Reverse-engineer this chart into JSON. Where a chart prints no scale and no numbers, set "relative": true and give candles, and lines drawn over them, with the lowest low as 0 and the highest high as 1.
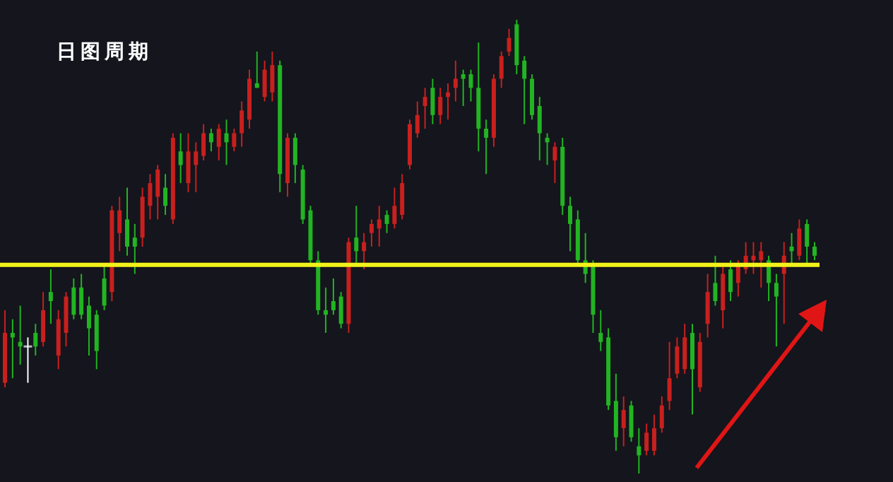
{
  "chart_data": {
    "type": "candlestick",
    "title": "日图周期",
    "relative": true,
    "categories": [
      null,
      null,
      null,
      null,
      null,
      null,
      null,
      null,
      null,
      null,
      null,
      null,
      null,
      null,
      null,
      null,
      null,
      null,
      null,
      null,
      null,
      null,
      null,
      null,
      null,
      null,
      null,
      null,
      null,
      null,
      null,
      null,
      null,
      null,
      null,
      null,
      null,
      null,
      null,
      null,
      null,
      null,
      null,
      null,
      null,
      null,
      null,
      null,
      null,
      null,
      null,
      null,
      null,
      null,
      null,
      null,
      null,
      null,
      null,
      null,
      null,
      null,
      null,
      null,
      null,
      null,
      null,
      null,
      null,
      null,
      null,
      null,
      null,
      null,
      null,
      null,
      null,
      null,
      null,
      null,
      null,
      null,
      null,
      null,
      null,
      null,
      null,
      null,
      null,
      null,
      null,
      null,
      null,
      null,
      null,
      null,
      null,
      null,
      null,
      null,
      null,
      null,
      null,
      null,
      null,
      null,
      null
    ],
    "ohlc": [
      [
        0.2,
        0.36,
        0.19,
        0.31
      ],
      [
        0.31,
        0.34,
        0.21,
        0.3
      ],
      [
        0.29,
        0.37,
        0.24,
        0.28
      ],
      [
        0.28,
        0.3,
        0.2,
        0.28
      ],
      [
        0.31,
        0.33,
        0.26,
        0.28
      ],
      [
        0.29,
        0.4,
        0.28,
        0.36
      ],
      [
        0.4,
        0.45,
        0.33,
        0.38
      ],
      [
        0.26,
        0.36,
        0.23,
        0.34
      ],
      [
        0.31,
        0.4,
        0.28,
        0.39
      ],
      [
        0.41,
        0.43,
        0.34,
        0.35
      ],
      [
        0.41,
        0.44,
        0.34,
        0.35
      ],
      [
        0.37,
        0.39,
        0.26,
        0.32
      ],
      [
        0.35,
        0.36,
        0.23,
        0.27
      ],
      [
        0.43,
        0.46,
        0.36,
        0.37
      ],
      [
        0.4,
        0.59,
        0.38,
        0.58
      ],
      [
        0.53,
        0.61,
        0.49,
        0.58
      ],
      [
        0.56,
        0.63,
        0.48,
        0.5
      ],
      [
        0.52,
        0.55,
        0.44,
        0.5
      ],
      [
        0.52,
        0.63,
        0.5,
        0.61
      ],
      [
        0.59,
        0.66,
        0.56,
        0.64
      ],
      [
        0.61,
        0.68,
        0.56,
        0.67
      ],
      [
        0.63,
        0.66,
        0.57,
        0.59
      ],
      [
        0.56,
        0.75,
        0.55,
        0.74
      ],
      [
        0.71,
        0.75,
        0.64,
        0.68
      ],
      [
        0.64,
        0.75,
        0.62,
        0.71
      ],
      [
        0.68,
        0.73,
        0.62,
        0.71
      ],
      [
        0.7,
        0.77,
        0.69,
        0.75
      ],
      [
        0.75,
        0.76,
        0.71,
        0.73
      ],
      [
        0.72,
        0.77,
        0.69,
        0.76
      ],
      [
        0.75,
        0.78,
        0.68,
        0.73
      ],
      [
        0.72,
        0.76,
        0.71,
        0.75
      ],
      [
        0.75,
        0.82,
        0.72,
        0.8
      ],
      [
        0.78,
        0.89,
        0.76,
        0.87
      ],
      [
        0.86,
        0.93,
        0.85,
        0.85
      ],
      [
        0.83,
        0.91,
        0.82,
        0.89
      ],
      [
        0.84,
        0.93,
        0.82,
        0.9
      ],
      [
        0.9,
        0.91,
        0.62,
        0.66
      ],
      [
        0.64,
        0.75,
        0.61,
        0.74
      ],
      [
        0.74,
        0.75,
        0.64,
        0.68
      ],
      [
        0.67,
        0.68,
        0.55,
        0.56
      ],
      [
        0.58,
        0.59,
        0.46,
        0.47
      ],
      [
        0.47,
        0.49,
        0.35,
        0.36
      ],
      [
        0.36,
        0.41,
        0.31,
        0.35
      ],
      [
        0.38,
        0.43,
        0.35,
        0.36
      ],
      [
        0.39,
        0.4,
        0.32,
        0.33
      ],
      [
        0.33,
        0.52,
        0.31,
        0.51
      ],
      [
        0.52,
        0.59,
        0.46,
        0.49
      ],
      [
        0.49,
        0.53,
        0.45,
        0.51
      ],
      [
        0.53,
        0.56,
        0.5,
        0.55
      ],
      [
        0.54,
        0.59,
        0.5,
        0.56
      ],
      [
        0.57,
        0.58,
        0.53,
        0.55
      ],
      [
        0.55,
        0.63,
        0.54,
        0.59
      ],
      [
        0.57,
        0.66,
        0.56,
        0.64
      ],
      [
        0.68,
        0.78,
        0.67,
        0.77
      ],
      [
        0.75,
        0.82,
        0.74,
        0.79
      ],
      [
        0.81,
        0.85,
        0.76,
        0.83
      ],
      [
        0.85,
        0.87,
        0.77,
        0.79
      ],
      [
        0.79,
        0.85,
        0.77,
        0.83
      ],
      [
        0.83,
        0.86,
        0.78,
        0.84
      ],
      [
        0.85,
        0.91,
        0.82,
        0.87
      ],
      [
        0.88,
        0.89,
        0.81,
        0.87
      ],
      [
        0.88,
        0.89,
        0.82,
        0.85
      ],
      [
        0.85,
        0.95,
        0.71,
        0.76
      ],
      [
        0.76,
        0.78,
        0.66,
        0.74
      ],
      [
        0.74,
        0.88,
        0.72,
        0.87
      ],
      [
        0.87,
        0.93,
        0.85,
        0.92
      ],
      [
        0.93,
        0.98,
        0.92,
        0.96
      ],
      [
        0.99,
        1.0,
        0.88,
        0.9
      ],
      [
        0.91,
        0.92,
        0.77,
        0.87
      ],
      [
        0.87,
        0.88,
        0.78,
        0.79
      ],
      [
        0.81,
        0.83,
        0.69,
        0.75
      ],
      [
        0.74,
        0.75,
        0.68,
        0.73
      ],
      [
        0.69,
        0.73,
        0.64,
        0.72
      ],
      [
        0.72,
        0.74,
        0.57,
        0.59
      ],
      [
        0.59,
        0.61,
        0.49,
        0.55
      ],
      [
        0.56,
        0.58,
        0.46,
        0.47
      ],
      [
        0.47,
        0.53,
        0.42,
        0.44
      ],
      [
        0.46,
        0.47,
        0.31,
        0.35
      ],
      [
        0.31,
        0.36,
        0.27,
        0.29
      ],
      [
        0.3,
        0.32,
        0.14,
        0.15
      ],
      [
        0.16,
        0.22,
        0.05,
        0.08
      ],
      [
        0.1,
        0.17,
        0.06,
        0.14
      ],
      [
        0.15,
        0.16,
        0.07,
        0.08
      ],
      [
        0.06,
        0.1,
        0.0,
        0.04
      ],
      [
        0.05,
        0.11,
        0.04,
        0.09
      ],
      [
        0.05,
        0.13,
        0.04,
        0.1
      ],
      [
        0.1,
        0.17,
        0.09,
        0.15
      ],
      [
        0.16,
        0.29,
        0.14,
        0.21
      ],
      [
        0.22,
        0.3,
        0.21,
        0.28
      ],
      [
        0.23,
        0.33,
        0.22,
        0.3
      ],
      [
        0.31,
        0.33,
        0.13,
        0.23
      ],
      [
        0.19,
        0.31,
        0.18,
        0.29
      ],
      [
        0.33,
        0.44,
        0.3,
        0.4
      ],
      [
        0.42,
        0.48,
        0.37,
        0.38
      ],
      [
        0.36,
        0.46,
        0.32,
        0.44
      ],
      [
        0.45,
        0.47,
        0.38,
        0.4
      ],
      [
        0.42,
        0.47,
        0.39,
        0.46
      ],
      [
        0.45,
        0.51,
        0.44,
        0.48
      ],
      [
        0.47,
        0.51,
        0.44,
        0.48
      ],
      [
        0.47,
        0.51,
        0.41,
        0.49
      ],
      [
        0.47,
        0.48,
        0.38,
        0.42
      ],
      [
        0.42,
        0.44,
        0.28,
        0.39
      ],
      [
        0.44,
        0.51,
        0.33,
        0.48
      ],
      [
        0.5,
        0.53,
        0.46,
        0.49
      ],
      [
        0.48,
        0.56,
        0.47,
        0.54
      ],
      [
        0.55,
        0.56,
        0.46,
        0.5
      ],
      [
        0.5,
        0.51,
        0.47,
        0.48
      ]
    ],
    "colors": [
      "#c8201e",
      "#22b422",
      "#22b422",
      "#ffffff",
      "#22b422",
      "#c8201e",
      "#22b422",
      "#c8201e",
      "#c8201e",
      "#22b422",
      "#22b422",
      "#22b422",
      "#22b422",
      "#22b422",
      "#c8201e",
      "#c8201e",
      "#22b422",
      "#22b422",
      "#c8201e",
      "#c8201e",
      "#c8201e",
      "#22b422",
      "#c8201e",
      "#22b422",
      "#c8201e",
      "#c8201e",
      "#c8201e",
      "#22b422",
      "#c8201e",
      "#22b422",
      "#c8201e",
      "#c8201e",
      "#c8201e",
      "#22b422",
      "#c8201e",
      "#c8201e",
      "#22b422",
      "#c8201e",
      "#22b422",
      "#22b422",
      "#22b422",
      "#22b422",
      "#22b422",
      "#22b422",
      "#22b422",
      "#c8201e",
      "#22b422",
      "#c8201e",
      "#c8201e",
      "#c8201e",
      "#22b422",
      "#c8201e",
      "#c8201e",
      "#c8201e",
      "#c8201e",
      "#c8201e",
      "#22b422",
      "#c8201e",
      "#c8201e",
      "#c8201e",
      "#22b422",
      "#22b422",
      "#22b422",
      "#22b422",
      "#c8201e",
      "#c8201e",
      "#c8201e",
      "#22b422",
      "#22b422",
      "#22b422",
      "#22b422",
      "#22b422",
      "#c8201e",
      "#22b422",
      "#22b422",
      "#22b422",
      "#22b422",
      "#22b422",
      "#22b422",
      "#22b422",
      "#22b422",
      "#c8201e",
      "#22b422",
      "#22b422",
      "#c8201e",
      "#c8201e",
      "#c8201e",
      "#c8201e",
      "#c8201e",
      "#c8201e",
      "#22b422",
      "#c8201e",
      "#c8201e",
      "#22b422",
      "#c8201e",
      "#22b422",
      "#c8201e",
      "#c8201e",
      "#c8201e",
      "#c8201e",
      "#22b422",
      "#22b422",
      "#c8201e",
      "#22b422",
      "#c8201e",
      "#22b422",
      "#22b422"
    ],
    "ref_lines": [
      {
        "axis": "y",
        "value": 0.46,
        "color": "#f2f21a"
      }
    ]
  }
}
